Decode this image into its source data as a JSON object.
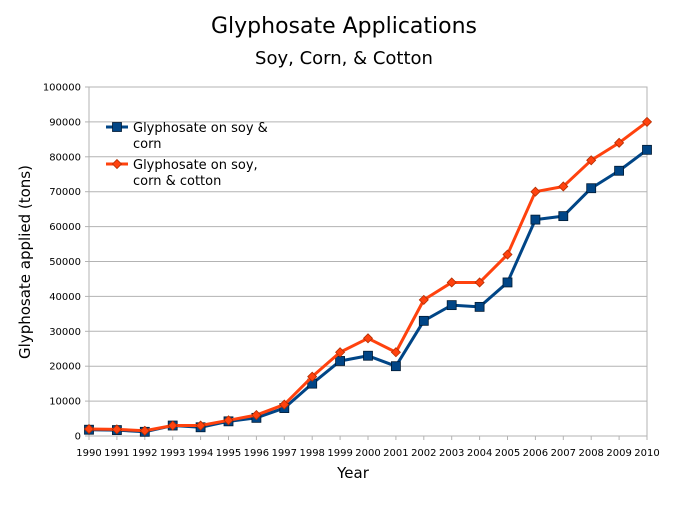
{
  "chart_data": {
    "type": "line",
    "title": "Glyphosate Applications",
    "subtitle": "Soy, Corn, & Cotton",
    "xlabel": "Year",
    "ylabel": "Glyphosate applied (tons)",
    "ylim": [
      0,
      100000
    ],
    "yticks": [
      "0",
      "10000",
      "20000",
      "30000",
      "40000",
      "50000",
      "60000",
      "70000",
      "80000",
      "90000",
      "100000"
    ],
    "grid": true,
    "legend_position": "top-left",
    "categories": [
      "1990",
      "1991",
      "1992",
      "1993",
      "1994",
      "1995",
      "1996",
      "1997",
      "1998",
      "1999",
      "2000",
      "2001",
      "2002",
      "2003",
      "2004",
      "2005",
      "2006",
      "2007",
      "2008",
      "2009",
      "2010"
    ],
    "series": [
      {
        "name_line1": "Glyphosate on soy &",
        "name_line2": "corn",
        "color": "#004586",
        "marker": "square",
        "values": [
          1800,
          1700,
          1200,
          3000,
          2500,
          4200,
          5200,
          8000,
          15000,
          21500,
          23000,
          20000,
          33000,
          37500,
          37000,
          44000,
          62000,
          63000,
          71000,
          76000,
          82000
        ]
      },
      {
        "name_line1": "Glyphosate on soy,",
        "name_line2": "corn & cotton",
        "color": "#ff420e",
        "marker": "diamond",
        "values": [
          2000,
          1900,
          1500,
          3000,
          3000,
          4500,
          6000,
          9000,
          17000,
          24000,
          28000,
          24000,
          39000,
          44000,
          44000,
          52000,
          70000,
          71500,
          79000,
          84000,
          90000
        ]
      }
    ]
  }
}
